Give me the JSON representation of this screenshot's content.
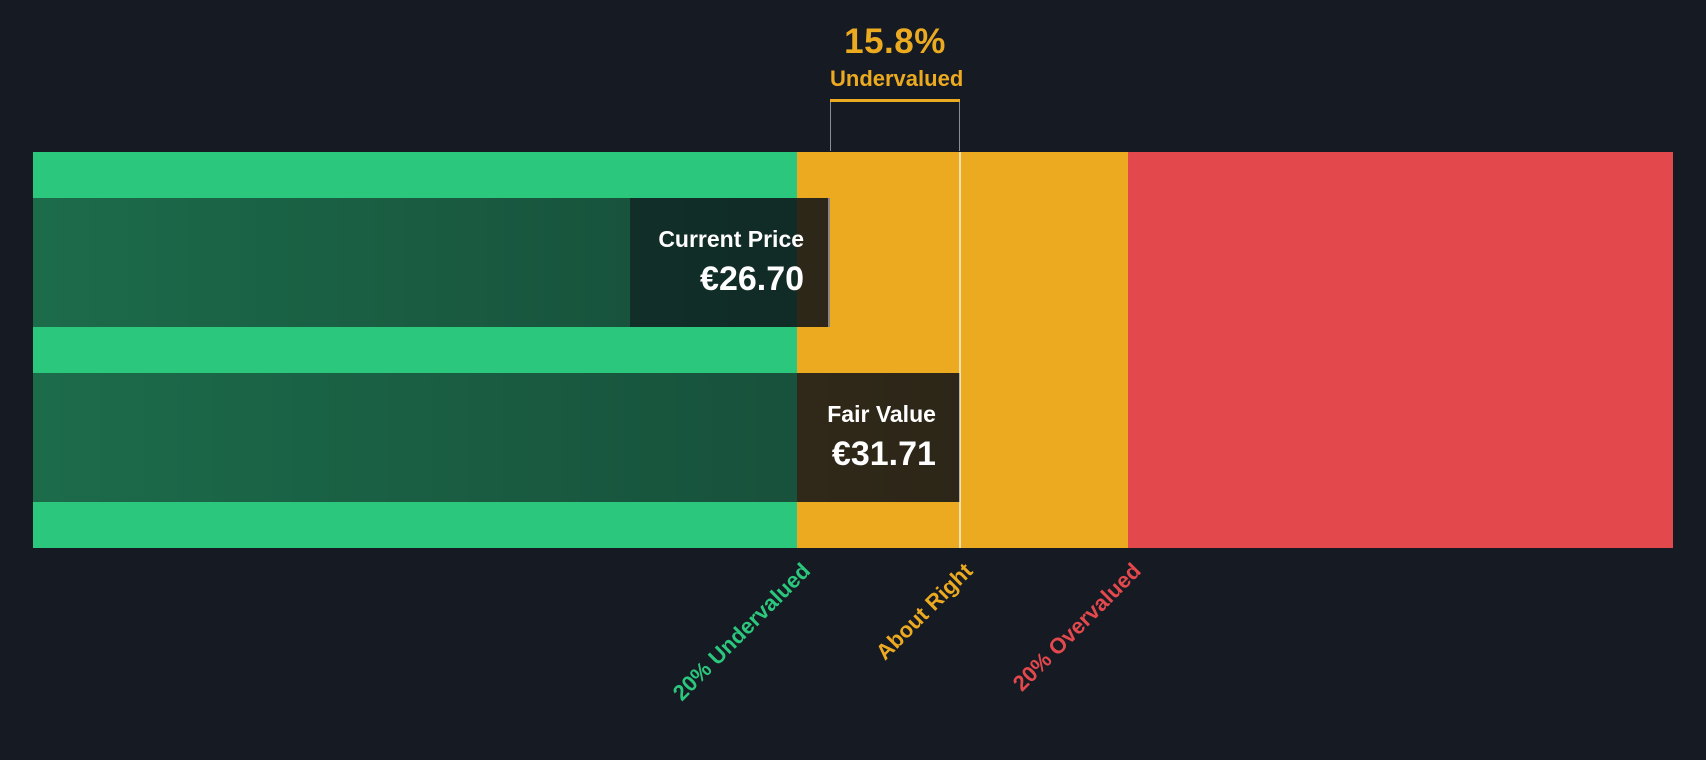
{
  "chart_data": {
    "type": "bar",
    "subtype": "fair-value-gauge",
    "annotation": {
      "percent": 15.8,
      "percent_display": "15.8%",
      "status": "Undervalued"
    },
    "prices": {
      "current": {
        "label": "Current Price",
        "value": 26.7,
        "display": "€26.70"
      },
      "fair": {
        "label": "Fair Value",
        "value": 31.71,
        "display": "€31.71"
      }
    },
    "zones": [
      {
        "label": "20% Undervalued",
        "color": "#2bc77d",
        "width_pct": "46.59%"
      },
      {
        "label": "About Right",
        "color": "#ecaa20",
        "width_pct": "20.18%"
      },
      {
        "label": "20% Overvalued",
        "color": "#e3494c",
        "width_pct": "33.23%"
      }
    ],
    "layout": {
      "grid": false,
      "legend": "none",
      "current_bar_width": "48.60%",
      "fair_bar_width": "56.52%",
      "fair_marker_left": "56.52%",
      "tick_anchors": [
        "46.59%",
        "56.52%",
        "66.77%"
      ]
    },
    "colors": {
      "background": "#151a23",
      "accent": "#ecaa20",
      "text": "#ffffff"
    }
  }
}
